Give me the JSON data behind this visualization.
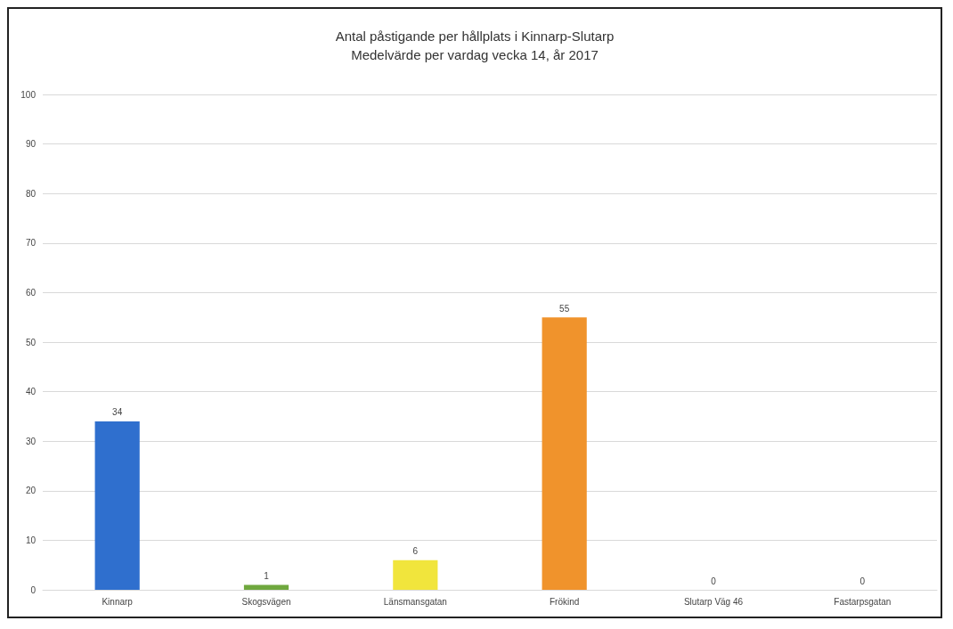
{
  "chart_data": {
    "type": "bar",
    "title": "Antal påstigande per hållplats i Kinnarp-Slutarp",
    "subtitle": "Medelvärde per vardag vecka 14, år 2017",
    "categories": [
      "Kinnarp",
      "Skogsvägen",
      "Länsmansgatan",
      "Frökind",
      "Slutarp Väg 46",
      "Fastarpsgatan"
    ],
    "values": [
      34,
      1,
      6,
      55,
      0,
      0
    ],
    "colors": [
      "#2f6fce",
      "#6fa83e",
      "#f1e53c",
      "#f0932c",
      "#a5a5a5",
      "#5b9bd5"
    ],
    "ylim": [
      0,
      100
    ],
    "yticks": [
      0,
      10,
      20,
      30,
      40,
      50,
      60,
      70,
      80,
      90,
      100
    ],
    "grid": "y",
    "data_labels": true
  }
}
